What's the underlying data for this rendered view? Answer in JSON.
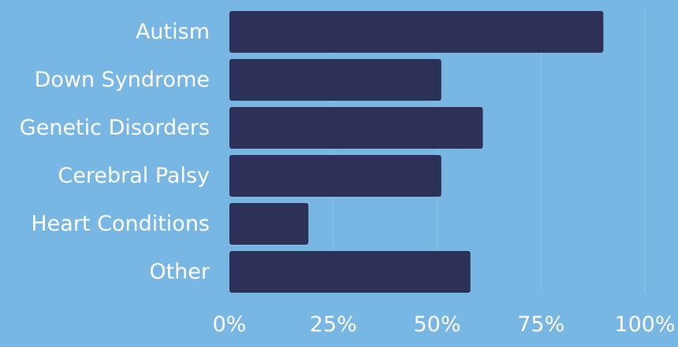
{
  "chart_data": {
    "type": "bar",
    "orientation": "horizontal",
    "categories": [
      "Autism",
      "Down Syndrome",
      "Genetic Disorders",
      "Cerebral Palsy",
      "Heart Conditions",
      "Other"
    ],
    "values": [
      90,
      51,
      61,
      51,
      19,
      58
    ],
    "xlim": [
      0,
      100
    ],
    "x_ticks": [
      0,
      25,
      50,
      75,
      100
    ],
    "x_tick_labels": [
      "0%",
      "25%",
      "50%",
      "75%",
      "100%"
    ],
    "grid": true,
    "colors": {
      "background": "#78b6e4",
      "bar": "#2d3157",
      "gridline": "#8cc1ea",
      "text": "#ffffff"
    }
  }
}
